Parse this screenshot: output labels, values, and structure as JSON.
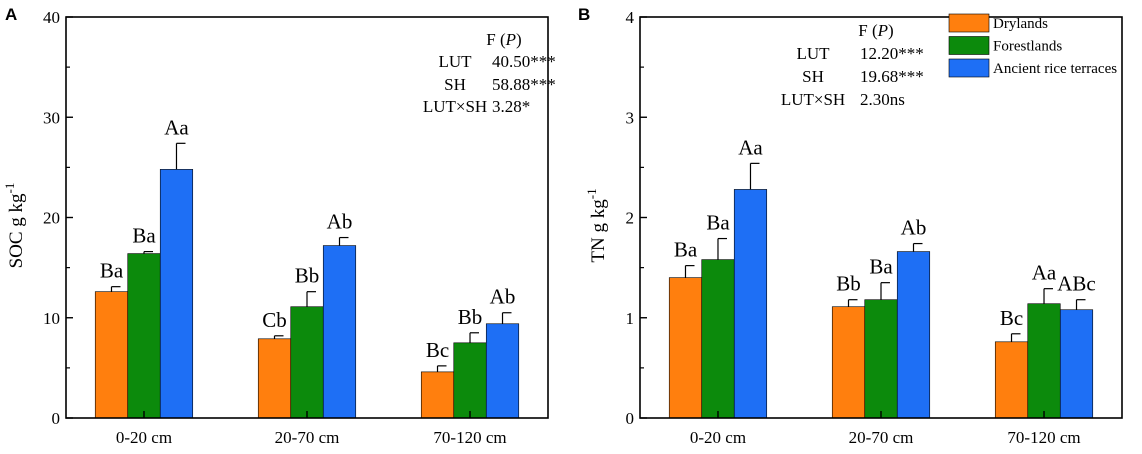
{
  "legend": [
    {
      "name": "Drylands",
      "color": "#ff7f0e"
    },
    {
      "name": "Forestlands",
      "color": "#0c8a0c"
    },
    {
      "name": "Ancient rice terraces",
      "color": "#1e6ff5"
    }
  ],
  "chart_data": [
    {
      "type": "bar",
      "panel": "A",
      "ylabel": "SOC g kg",
      "ylabel_sup": "-1",
      "ylim": [
        0,
        40
      ],
      "yticks": [
        0,
        10,
        20,
        30,
        40
      ],
      "categories": [
        "0-20 cm",
        "20-70 cm",
        "70-120 cm"
      ],
      "series": [
        {
          "name": "Drylands",
          "values": [
            12.6,
            7.9,
            4.6
          ],
          "errors": [
            0.5,
            0.3,
            0.6
          ],
          "labels": [
            "Ba",
            "Cb",
            "Bc"
          ]
        },
        {
          "name": "Forestlands",
          "values": [
            16.4,
            11.1,
            7.5
          ],
          "errors": [
            0.2,
            1.5,
            1.0
          ],
          "labels": [
            "Ba",
            "Bb",
            "Bb"
          ]
        },
        {
          "name": "Ancient rice terraces",
          "values": [
            24.8,
            17.2,
            9.4
          ],
          "errors": [
            2.6,
            0.8,
            1.1
          ],
          "labels": [
            "Aa",
            "Ab",
            "Ab"
          ]
        }
      ],
      "stats": {
        "header": "F (",
        "header_p": "P",
        "header_close": ")",
        "rows": [
          {
            "name": "LUT",
            "value": "40.50***"
          },
          {
            "name": "SH",
            "value": "58.88***"
          },
          {
            "name": "LUT×SH",
            "value": "3.28*"
          }
        ]
      }
    },
    {
      "type": "bar",
      "panel": "B",
      "ylabel": "TN g kg",
      "ylabel_sup": "-1",
      "ylim": [
        0,
        4
      ],
      "yticks": [
        0,
        1,
        2,
        3,
        4
      ],
      "categories": [
        "0-20 cm",
        "20-70 cm",
        "70-120 cm"
      ],
      "series": [
        {
          "name": "Drylands",
          "values": [
            1.4,
            1.11,
            0.76
          ],
          "errors": [
            0.12,
            0.07,
            0.08
          ],
          "labels": [
            "Ba",
            "Bb",
            "Bc"
          ]
        },
        {
          "name": "Forestlands",
          "values": [
            1.58,
            1.18,
            1.14
          ],
          "errors": [
            0.21,
            0.17,
            0.15
          ],
          "labels": [
            "Ba",
            "Ba",
            "Aa"
          ]
        },
        {
          "name": "Ancient rice terraces",
          "values": [
            2.28,
            1.66,
            1.08
          ],
          "errors": [
            0.26,
            0.08,
            0.1
          ],
          "labels": [
            "Aa",
            "Ab",
            "ABc"
          ]
        }
      ],
      "stats": {
        "header": "F (",
        "header_p": "P",
        "header_close": ")",
        "rows": [
          {
            "name": "LUT",
            "value": "12.20***"
          },
          {
            "name": "SH",
            "value": "19.68***"
          },
          {
            "name": "LUT×SH",
            "value": "2.30ns"
          }
        ]
      }
    }
  ]
}
